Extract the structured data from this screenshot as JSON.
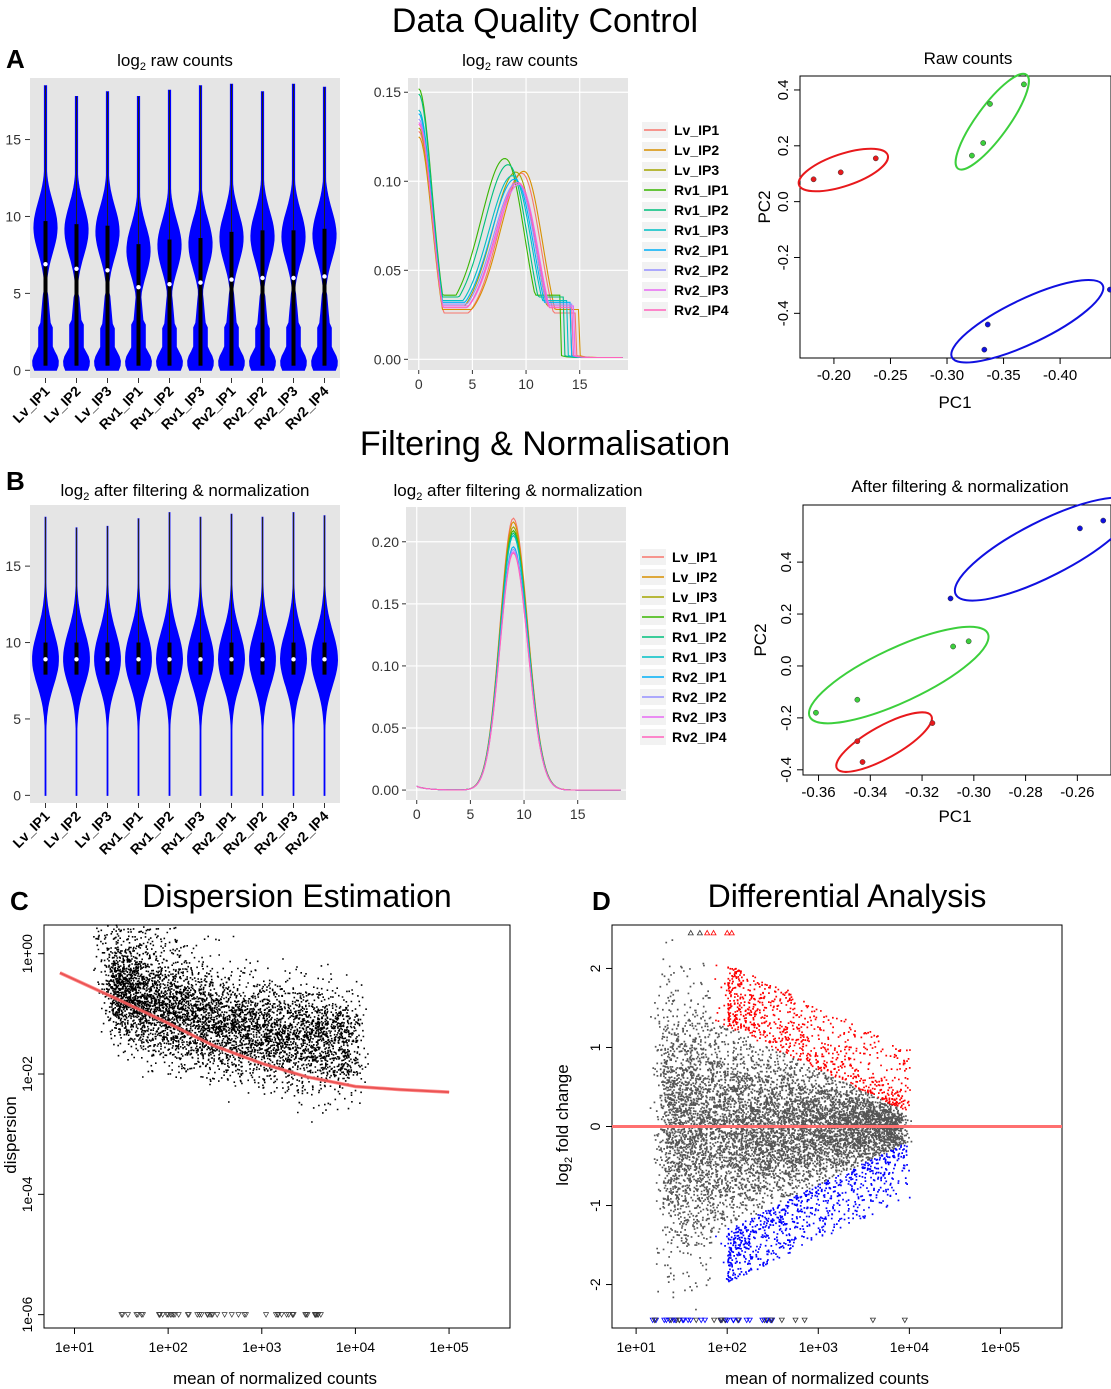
{
  "sections": {
    "qc_title": "Data Quality Control",
    "filter_title": "Filtering & Normalisation"
  },
  "panel_letters": [
    "A",
    "B",
    "C",
    "D"
  ],
  "colors": {
    "violin": "#0000ff",
    "panel_bg": "#e5e5e5",
    "trend": "#ff7070",
    "up": "#ff0000",
    "down": "#0000ff",
    "ns": "#555555",
    "pca_red": "#e8191c",
    "pca_green": "#3ccf3c",
    "pca_blue": "#1010e0"
  },
  "chart_data": [
    {
      "id": "A1",
      "type": "violin",
      "title_main": "log",
      "title_sub": "2",
      "title_rest": " raw counts",
      "categories": [
        "Lv_IP1",
        "Lv_IP2",
        "Lv_IP3",
        "Rv1_IP1",
        "Rv1_IP2",
        "Rv1_IP3",
        "Rv2_IP1",
        "Rv2_IP2",
        "Rv2_IP3",
        "Rv2_IP4"
      ],
      "yticks": [
        0,
        5,
        10,
        15
      ],
      "ylim": [
        -0.5,
        19
      ],
      "max": [
        18.5,
        17.8,
        18.1,
        17.8,
        18.2,
        18.5,
        18.6,
        18.1,
        18.6,
        18.4
      ],
      "median": [
        6.9,
        6.6,
        6.5,
        5.4,
        5.6,
        5.7,
        5.9,
        6.0,
        6.0,
        6.1
      ],
      "q1": [
        0.3,
        0.3,
        0.3,
        0.3,
        0.3,
        0.3,
        0.3,
        0.3,
        0.3,
        0.3
      ],
      "q3": [
        9.7,
        9.5,
        9.4,
        8.2,
        8.5,
        8.6,
        9.0,
        9.1,
        9.1,
        9.2
      ]
    },
    {
      "id": "A2",
      "type": "line",
      "title_main": "log",
      "title_sub": "2",
      "title_rest": " raw counts",
      "xlim": [
        -1,
        19.5
      ],
      "ylim": [
        -0.006,
        0.158
      ],
      "xticks": [
        0,
        5,
        10,
        15
      ],
      "yticks": [
        "0.00",
        "0.05",
        "0.10",
        "0.15"
      ],
      "series": [
        {
          "name": "Lv_IP1",
          "color": "#f8766d",
          "peak_x": 9.7,
          "peak_y": 0.102,
          "start_y": 0.128,
          "valley_y": 0.026
        },
        {
          "name": "Lv_IP2",
          "color": "#d89000",
          "peak_x": 9.9,
          "peak_y": 0.103,
          "start_y": 0.125,
          "valley_y": 0.028
        },
        {
          "name": "Lv_IP3",
          "color": "#a3a500",
          "peak_x": 9.2,
          "peak_y": 0.1,
          "start_y": 0.13,
          "valley_y": 0.03
        },
        {
          "name": "Rv1_IP1",
          "color": "#39b600",
          "peak_x": 8.2,
          "peak_y": 0.102,
          "start_y": 0.152,
          "valley_y": 0.036
        },
        {
          "name": "Rv1_IP2",
          "color": "#00bf7d",
          "peak_x": 8.5,
          "peak_y": 0.1,
          "start_y": 0.149,
          "valley_y": 0.035
        },
        {
          "name": "Rv1_IP3",
          "color": "#00bfc4",
          "peak_x": 8.9,
          "peak_y": 0.096,
          "start_y": 0.14,
          "valley_y": 0.033
        },
        {
          "name": "Rv2_IP1",
          "color": "#00b0f6",
          "peak_x": 9.1,
          "peak_y": 0.095,
          "start_y": 0.138,
          "valley_y": 0.032
        },
        {
          "name": "Rv2_IP2",
          "color": "#9590ff",
          "peak_x": 9.3,
          "peak_y": 0.094,
          "start_y": 0.135,
          "valley_y": 0.031
        },
        {
          "name": "Rv2_IP3",
          "color": "#e76bf3",
          "peak_x": 9.5,
          "peak_y": 0.094,
          "start_y": 0.133,
          "valley_y": 0.03
        },
        {
          "name": "Rv2_IP4",
          "color": "#ff62bc",
          "peak_x": 9.4,
          "peak_y": 0.095,
          "start_y": 0.132,
          "valley_y": 0.029
        }
      ]
    },
    {
      "id": "A3",
      "type": "scatter",
      "title": "Raw counts",
      "xlabel": "PC1",
      "ylabel": "PC2",
      "xlim": [
        -0.17,
        -0.445
      ],
      "ylim": [
        -0.56,
        0.45
      ],
      "xticks": [
        "-0.20",
        "-0.25",
        "-0.30",
        "-0.35",
        "-0.40"
      ],
      "xtick_values": [
        -0.2,
        -0.25,
        -0.3,
        -0.35,
        -0.4
      ],
      "yticks": [
        "-0.4",
        "-0.2",
        "0.0",
        "0.2",
        "0.4"
      ],
      "ytick_values": [
        -0.4,
        -0.2,
        0.0,
        0.2,
        0.4
      ],
      "groups": [
        {
          "color": "#e8191c",
          "points": [
            [
              -0.182,
              0.08
            ],
            [
              -0.206,
              0.105
            ],
            [
              -0.237,
              0.155
            ]
          ]
        },
        {
          "color": "#3ccf3c",
          "points": [
            [
              -0.322,
              0.165
            ],
            [
              -0.332,
              0.21
            ],
            [
              -0.338,
              0.35
            ],
            [
              -0.368,
              0.42
            ]
          ]
        },
        {
          "color": "#1010e0",
          "points": [
            [
              -0.333,
              -0.53
            ],
            [
              -0.336,
              -0.44
            ],
            [
              -0.444,
              -0.315
            ]
          ]
        }
      ]
    },
    {
      "id": "B1",
      "type": "violin",
      "title_main": "log",
      "title_sub": "2",
      "title_rest": " after filtering & normalization",
      "categories": [
        "Lv_IP1",
        "Lv_IP2",
        "Lv_IP3",
        "Rv1_IP1",
        "Rv1_IP2",
        "Rv1_IP3",
        "Rv2_IP1",
        "Rv2_IP2",
        "Rv2_IP3",
        "Rv2_IP4"
      ],
      "yticks": [
        0,
        5,
        10,
        15
      ],
      "ylim": [
        -0.5,
        19
      ],
      "max": [
        18.2,
        17.5,
        17.6,
        18.1,
        18.5,
        18.2,
        18.4,
        18.2,
        18.5,
        18.3
      ],
      "median": [
        8.9,
        8.9,
        8.9,
        8.9,
        8.9,
        8.9,
        8.9,
        8.9,
        8.9,
        8.9
      ],
      "q1": [
        7.9,
        7.9,
        7.9,
        7.9,
        7.9,
        7.9,
        7.9,
        7.9,
        7.9,
        7.9
      ],
      "q3": [
        10.0,
        10.0,
        10.0,
        10.0,
        10.0,
        10.0,
        10.0,
        10.0,
        10.0,
        10.0
      ]
    },
    {
      "id": "B2",
      "type": "line",
      "title_main": "log",
      "title_sub": "2",
      "title_rest": " after filtering & normalization",
      "xlim": [
        -1,
        19.5
      ],
      "ylim": [
        -0.008,
        0.228
      ],
      "xticks": [
        0,
        5,
        10,
        15
      ],
      "yticks": [
        "0.00",
        "0.05",
        "0.10",
        "0.15",
        "0.20"
      ],
      "series": [
        {
          "name": "Lv_IP1",
          "color": "#f8766d",
          "peak_y": 0.219
        },
        {
          "name": "Lv_IP2",
          "color": "#d89000",
          "peak_y": 0.216
        },
        {
          "name": "Lv_IP3",
          "color": "#a3a500",
          "peak_y": 0.212
        },
        {
          "name": "Rv1_IP1",
          "color": "#39b600",
          "peak_y": 0.209
        },
        {
          "name": "Rv1_IP2",
          "color": "#00bf7d",
          "peak_y": 0.207
        },
        {
          "name": "Rv1_IP3",
          "color": "#00bfc4",
          "peak_y": 0.205
        },
        {
          "name": "Rv2_IP1",
          "color": "#00b0f6",
          "peak_y": 0.196
        },
        {
          "name": "Rv2_IP2",
          "color": "#9590ff",
          "peak_y": 0.194
        },
        {
          "name": "Rv2_IP3",
          "color": "#e76bf3",
          "peak_y": 0.192
        },
        {
          "name": "Rv2_IP4",
          "color": "#ff62bc",
          "peak_y": 0.191
        }
      ]
    },
    {
      "id": "B3",
      "type": "scatter",
      "title": "After filtering & normalization",
      "xlabel": "PC1",
      "ylabel": "PC2",
      "xlim": [
        -0.366,
        -0.247
      ],
      "ylim": [
        -0.42,
        0.62
      ],
      "xticks": [
        "-0.36",
        "-0.34",
        "-0.32",
        "-0.30",
        "-0.28",
        "-0.26"
      ],
      "xtick_values": [
        -0.36,
        -0.34,
        -0.32,
        -0.3,
        -0.28,
        -0.26
      ],
      "yticks": [
        "-0.4",
        "-0.2",
        "0.0",
        "0.2",
        "0.4"
      ],
      "ytick_values": [
        -0.4,
        -0.2,
        0.0,
        0.2,
        0.4
      ],
      "groups": [
        {
          "color": "#1010e0",
          "points": [
            [
              -0.309,
              0.26
            ],
            [
              -0.259,
              0.53
            ],
            [
              -0.25,
              0.56
            ]
          ]
        },
        {
          "color": "#3ccf3c",
          "points": [
            [
              -0.361,
              -0.18
            ],
            [
              -0.345,
              -0.13
            ],
            [
              -0.308,
              0.075
            ],
            [
              -0.302,
              0.095
            ]
          ]
        },
        {
          "color": "#e8191c",
          "points": [
            [
              -0.345,
              -0.29
            ],
            [
              -0.343,
              -0.37
            ],
            [
              -0.316,
              -0.22
            ]
          ]
        }
      ]
    },
    {
      "id": "C",
      "type": "scatter",
      "title": "Dispersion Estimation",
      "xlabel": "mean of normalized counts",
      "ylabel": "dispersion",
      "log_x": true,
      "log_y": true,
      "xlim": [
        7,
        5000000
      ],
      "ylim": [
        6e-07,
        3
      ],
      "xticks": [
        "1e+01",
        "1e+02",
        "1e+03",
        "1e+04",
        "1e+05"
      ],
      "xtick_values": [
        10,
        100,
        1000,
        10000,
        100000
      ],
      "yticks": [
        "1e-06",
        "1e-04",
        "1e-02",
        "1e+00"
      ],
      "ytick_values": [
        1e-06,
        0.0001,
        0.01,
        1
      ],
      "trend": [
        [
          7,
          0.48
        ],
        [
          30,
          0.17
        ],
        [
          100,
          0.07
        ],
        [
          300,
          0.03
        ],
        [
          1000,
          0.015
        ],
        [
          3000,
          0.009
        ],
        [
          10000,
          0.0062
        ],
        [
          30000,
          0.0055
        ],
        [
          100000,
          0.005
        ]
      ]
    },
    {
      "id": "D",
      "type": "scatter",
      "title": "Differential Analysis",
      "xlabel": "mean of normalized counts",
      "ylabel_main": "log",
      "ylabel_sub": "2",
      "ylabel_rest": " fold change",
      "log_x": true,
      "xlim": [
        7,
        5000000
      ],
      "ylim": [
        -2.55,
        2.55
      ],
      "xticks": [
        "1e+01",
        "1e+02",
        "1e+03",
        "1e+04",
        "1e+05"
      ],
      "xtick_values": [
        10,
        100,
        1000,
        10000,
        100000
      ],
      "yticks": [
        "-2",
        "-1",
        "0",
        "1",
        "2"
      ],
      "ytick_values": [
        -2,
        -1,
        0,
        1,
        2
      ],
      "hline": 0
    }
  ]
}
